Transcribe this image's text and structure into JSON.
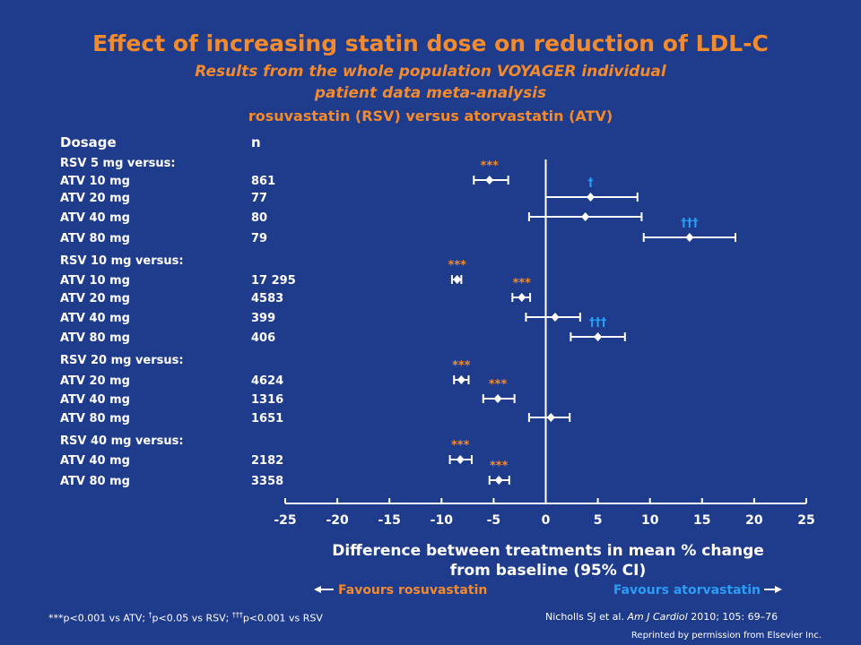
{
  "title": "Effect of increasing statin dose on reduction of LDL-C",
  "subtitle_line1": "Results from the whole population VOYAGER individual",
  "subtitle_line2": "patient data meta-analysis",
  "subtitle_line3": "rosuvastatin (RSV) versus atorvastatin (ATV)",
  "column_headers": {
    "dosage": "Dosage",
    "n": "n"
  },
  "colors": {
    "background": "#1f3b8c",
    "orange": "#f28a2e",
    "blue": "#2a9df4",
    "white": "#ffffff"
  },
  "footnote": {
    "part1": "***p<0.001  vs ATV; ",
    "dagger1": "†",
    "part2": "p<0.05 vs RSV; ",
    "dagger3": "†††",
    "part3": "p<0.001 vs RSV"
  },
  "reference": {
    "authors": "Nicholls SJ et al. ",
    "journal": "Am J Cardiol",
    "rest": " 2010;  105: 69–76"
  },
  "reprint": "Reprinted by permission from Elsevier Inc.",
  "chart_data": {
    "type": "forest",
    "xlabel_line1": "Difference between treatments in mean % change",
    "xlabel_line2": "from baseline (95% CI)",
    "xlim": [
      -25,
      25
    ],
    "xticks": [
      -25,
      -20,
      -15,
      -10,
      -5,
      0,
      5,
      10,
      15,
      20,
      25
    ],
    "favours_left": "Favours rosuvastatin",
    "favours_right": "Favours atorvastatin",
    "groups": [
      {
        "label": "RSV 5 mg versus:",
        "rows": [
          {
            "comparator": "ATV 10 mg",
            "n": "861",
            "estimate": -5.4,
            "ci": [
              -6.9,
              -3.6
            ],
            "sig": "***"
          },
          {
            "comparator": "ATV 20 mg",
            "n": "77",
            "estimate": 4.3,
            "ci": [
              0.0,
              8.8
            ],
            "sig": "†"
          },
          {
            "comparator": "ATV 40 mg",
            "n": "80",
            "estimate": 3.8,
            "ci": [
              -1.6,
              9.2
            ],
            "sig": ""
          },
          {
            "comparator": "ATV 80 mg",
            "n": "79",
            "estimate": 13.8,
            "ci": [
              9.4,
              18.2
            ],
            "sig": "†††"
          }
        ]
      },
      {
        "label": "RSV 10 mg versus:",
        "rows": [
          {
            "comparator": "ATV 10 mg",
            "n": "17 295",
            "estimate": -8.5,
            "ci": [
              -9.0,
              -8.1
            ],
            "sig": "***"
          },
          {
            "comparator": "ATV 20 mg",
            "n": "4583",
            "estimate": -2.3,
            "ci": [
              -3.2,
              -1.5
            ],
            "sig": "***"
          },
          {
            "comparator": "ATV 40 mg",
            "n": "399",
            "estimate": 0.9,
            "ci": [
              -1.9,
              3.3
            ],
            "sig": ""
          },
          {
            "comparator": "ATV 80 mg",
            "n": "406",
            "estimate": 5.0,
            "ci": [
              2.4,
              7.6
            ],
            "sig": "†††"
          }
        ]
      },
      {
        "label": "RSV 20 mg versus:",
        "rows": [
          {
            "comparator": "ATV 20 mg",
            "n": "4624",
            "estimate": -8.1,
            "ci": [
              -8.8,
              -7.4
            ],
            "sig": "***"
          },
          {
            "comparator": "ATV 40 mg",
            "n": "1316",
            "estimate": -4.6,
            "ci": [
              -6.0,
              -3.0
            ],
            "sig": "***"
          },
          {
            "comparator": "ATV 80 mg",
            "n": "1651",
            "estimate": 0.5,
            "ci": [
              -1.6,
              2.3
            ],
            "sig": ""
          }
        ]
      },
      {
        "label": "RSV 40 mg versus:",
        "rows": [
          {
            "comparator": "ATV 40 mg",
            "n": "2182",
            "estimate": -8.2,
            "ci": [
              -9.2,
              -7.1
            ],
            "sig": "***"
          },
          {
            "comparator": "ATV 80 mg",
            "n": "3358",
            "estimate": -4.5,
            "ci": [
              -5.4,
              -3.5
            ],
            "sig": "***"
          }
        ]
      }
    ]
  }
}
